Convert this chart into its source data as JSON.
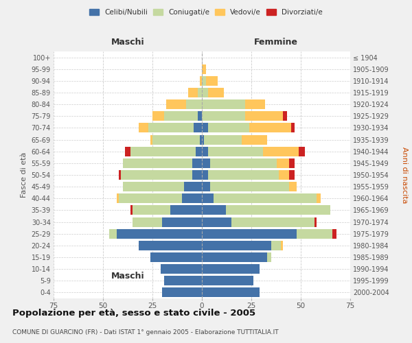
{
  "age_groups": [
    "0-4",
    "5-9",
    "10-14",
    "15-19",
    "20-24",
    "25-29",
    "30-34",
    "35-39",
    "40-44",
    "45-49",
    "50-54",
    "55-59",
    "60-64",
    "65-69",
    "70-74",
    "75-79",
    "80-84",
    "85-89",
    "90-94",
    "95-99",
    "100+"
  ],
  "birth_years": [
    "2000-2004",
    "1995-1999",
    "1990-1994",
    "1985-1989",
    "1980-1984",
    "1975-1979",
    "1970-1974",
    "1965-1969",
    "1960-1964",
    "1955-1959",
    "1950-1954",
    "1945-1949",
    "1940-1944",
    "1935-1939",
    "1930-1934",
    "1925-1929",
    "1920-1924",
    "1915-1919",
    "1910-1914",
    "1905-1909",
    "≤ 1904"
  ],
  "colors": {
    "celibi": "#4472a8",
    "coniugati": "#c5d9a0",
    "vedovi": "#ffc65c",
    "divorziati": "#cc2222"
  },
  "maschi": {
    "celibi": [
      20,
      19,
      21,
      26,
      32,
      43,
      20,
      16,
      10,
      9,
      5,
      5,
      3,
      1,
      4,
      2,
      0,
      0,
      0,
      0,
      0
    ],
    "coniugati": [
      0,
      0,
      0,
      0,
      0,
      4,
      15,
      19,
      32,
      31,
      36,
      35,
      33,
      24,
      23,
      17,
      8,
      2,
      0,
      0,
      0
    ],
    "vedovi": [
      0,
      0,
      0,
      0,
      0,
      0,
      0,
      0,
      1,
      0,
      0,
      0,
      0,
      1,
      5,
      6,
      10,
      5,
      1,
      0,
      0
    ],
    "divorziati": [
      0,
      0,
      0,
      0,
      0,
      0,
      0,
      1,
      0,
      0,
      1,
      0,
      3,
      0,
      0,
      0,
      0,
      0,
      0,
      0,
      0
    ]
  },
  "femmine": {
    "celibi": [
      29,
      26,
      29,
      33,
      35,
      48,
      15,
      12,
      6,
      4,
      3,
      4,
      3,
      1,
      3,
      0,
      0,
      0,
      0,
      0,
      0
    ],
    "coniugati": [
      0,
      0,
      0,
      2,
      5,
      18,
      42,
      53,
      52,
      40,
      36,
      34,
      28,
      19,
      21,
      22,
      22,
      3,
      2,
      0,
      0
    ],
    "vedovi": [
      0,
      0,
      0,
      0,
      1,
      0,
      0,
      0,
      2,
      4,
      5,
      6,
      18,
      13,
      21,
      19,
      10,
      8,
      6,
      2,
      0
    ],
    "divorziati": [
      0,
      0,
      0,
      0,
      0,
      2,
      1,
      0,
      0,
      0,
      3,
      3,
      3,
      0,
      2,
      2,
      0,
      0,
      0,
      0,
      0
    ]
  },
  "title": "Popolazione per età, sesso e stato civile - 2005",
  "subtitle": "COMUNE DI GUARCINO (FR) - Dati ISTAT 1° gennaio 2005 - Elaborazione TUTTITALIA.IT",
  "xlabel_left": "Maschi",
  "xlabel_right": "Femmine",
  "ylabel_left": "Fasce di età",
  "ylabel_right": "Anni di nascita",
  "xlim": 75,
  "bg_color": "#f0f0f0",
  "plot_bg": "#ffffff",
  "legend_labels": [
    "Celibi/Nubili",
    "Coniugati/e",
    "Vedovi/e",
    "Divorziati/e"
  ]
}
